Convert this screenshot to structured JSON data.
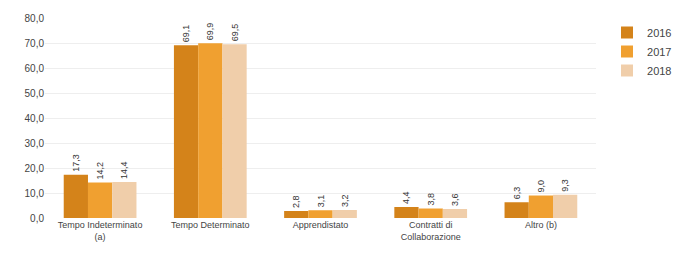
{
  "chart_data": {
    "type": "bar",
    "categories": [
      "Tempo Indeterminato\n(a)",
      "Tempo Determinato",
      "Apprendistato",
      "Contratti di\nCollaborazione",
      "Altro (b)"
    ],
    "series": [
      {
        "name": "2016",
        "color": "#D4831A",
        "values": [
          17.3,
          69.1,
          2.8,
          4.4,
          6.3
        ],
        "value_labels": [
          "17,3",
          "69,1",
          "2,8",
          "4,4",
          "6,3"
        ]
      },
      {
        "name": "2017",
        "color": "#F0A030",
        "values": [
          14.2,
          69.9,
          3.1,
          3.8,
          9.0
        ],
        "value_labels": [
          "14,2",
          "69,9",
          "3,1",
          "3,8",
          "9,0"
        ]
      },
      {
        "name": "2018",
        "color": "#F0CEAA",
        "values": [
          14.4,
          69.5,
          3.2,
          3.6,
          9.3
        ],
        "value_labels": [
          "14,4",
          "69,5",
          "3,2",
          "3,6",
          "9,3"
        ]
      }
    ],
    "ylim": [
      0,
      80
    ],
    "yticks": [
      {
        "value": 0,
        "label": "0,0"
      },
      {
        "value": 10,
        "label": "10,0"
      },
      {
        "value": 20,
        "label": "20,0"
      },
      {
        "value": 30,
        "label": "30,0"
      },
      {
        "value": 40,
        "label": "40,0"
      },
      {
        "value": 50,
        "label": "50,0"
      },
      {
        "value": 60,
        "label": "60,0"
      },
      {
        "value": 70,
        "label": "70,0"
      },
      {
        "value": 80,
        "label": "80,0"
      }
    ],
    "grid": true,
    "data_labels": true,
    "legend": "right"
  }
}
